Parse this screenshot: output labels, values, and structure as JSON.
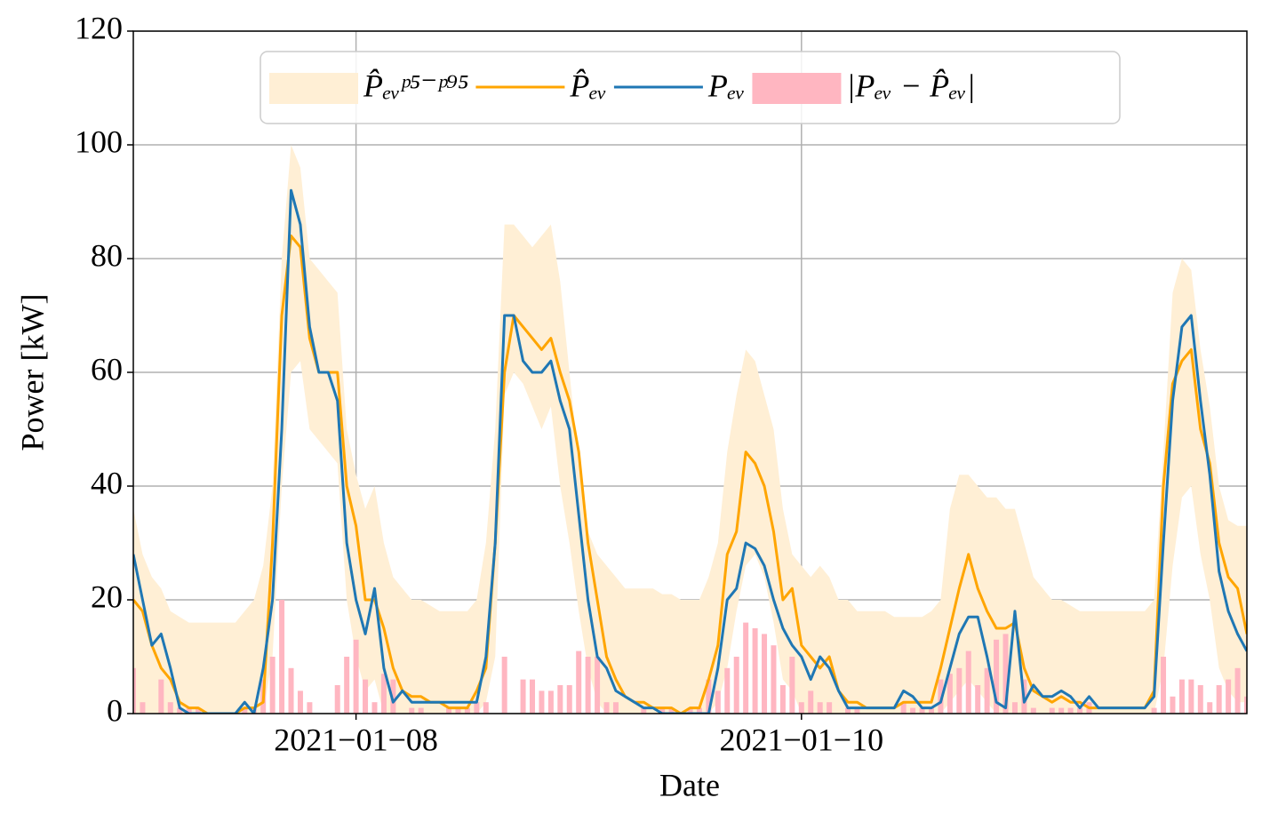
{
  "chart_data": {
    "type": "line",
    "x_label": "Date",
    "y_label": "Power [kW]",
    "xlim": [
      "2021-01-07",
      "2021-01-12"
    ],
    "xticks": [
      {
        "value": "2021-01-08",
        "label": "2021−01−08"
      },
      {
        "value": "2021-01-10",
        "label": "2021−01−10"
      }
    ],
    "ylim": [
      0,
      120
    ],
    "yticks": [
      0,
      20,
      40,
      60,
      80,
      100,
      120
    ],
    "grid": true,
    "legend": "upper center",
    "x": [
      "2021-01-07T00:00",
      "2021-01-07T01:00",
      "2021-01-07T02:00",
      "2021-01-07T03:00",
      "2021-01-07T04:00",
      "2021-01-07T05:00",
      "2021-01-07T06:00",
      "2021-01-07T07:00",
      "2021-01-07T08:00",
      "2021-01-07T09:00",
      "2021-01-07T10:00",
      "2021-01-07T11:00",
      "2021-01-07T12:00",
      "2021-01-07T13:00",
      "2021-01-07T14:00",
      "2021-01-07T15:00",
      "2021-01-07T16:00",
      "2021-01-07T17:00",
      "2021-01-07T18:00",
      "2021-01-07T19:00",
      "2021-01-07T20:00",
      "2021-01-07T21:00",
      "2021-01-07T22:00",
      "2021-01-07T23:00",
      "2021-01-08T00:00",
      "2021-01-08T01:00",
      "2021-01-08T02:00",
      "2021-01-08T03:00",
      "2021-01-08T04:00",
      "2021-01-08T05:00",
      "2021-01-08T06:00",
      "2021-01-08T07:00",
      "2021-01-08T08:00",
      "2021-01-08T09:00",
      "2021-01-08T10:00",
      "2021-01-08T11:00",
      "2021-01-08T12:00",
      "2021-01-08T13:00",
      "2021-01-08T14:00",
      "2021-01-08T15:00",
      "2021-01-08T16:00",
      "2021-01-08T17:00",
      "2021-01-08T18:00",
      "2021-01-08T19:00",
      "2021-01-08T20:00",
      "2021-01-08T21:00",
      "2021-01-08T22:00",
      "2021-01-08T23:00",
      "2021-01-09T00:00",
      "2021-01-09T01:00",
      "2021-01-09T02:00",
      "2021-01-09T03:00",
      "2021-01-09T04:00",
      "2021-01-09T05:00",
      "2021-01-09T06:00",
      "2021-01-09T07:00",
      "2021-01-09T08:00",
      "2021-01-09T09:00",
      "2021-01-09T10:00",
      "2021-01-09T11:00",
      "2021-01-09T12:00",
      "2021-01-09T13:00",
      "2021-01-09T14:00",
      "2021-01-09T15:00",
      "2021-01-09T16:00",
      "2021-01-09T17:00",
      "2021-01-09T18:00",
      "2021-01-09T19:00",
      "2021-01-09T20:00",
      "2021-01-09T21:00",
      "2021-01-09T22:00",
      "2021-01-09T23:00",
      "2021-01-10T00:00",
      "2021-01-10T01:00",
      "2021-01-10T02:00",
      "2021-01-10T03:00",
      "2021-01-10T04:00",
      "2021-01-10T05:00",
      "2021-01-10T06:00",
      "2021-01-10T07:00",
      "2021-01-10T08:00",
      "2021-01-10T09:00",
      "2021-01-10T10:00",
      "2021-01-10T11:00",
      "2021-01-10T12:00",
      "2021-01-10T13:00",
      "2021-01-10T14:00",
      "2021-01-10T15:00",
      "2021-01-10T16:00",
      "2021-01-10T17:00",
      "2021-01-10T18:00",
      "2021-01-10T19:00",
      "2021-01-10T20:00",
      "2021-01-10T21:00",
      "2021-01-10T22:00",
      "2021-01-10T23:00",
      "2021-01-11T00:00",
      "2021-01-11T01:00",
      "2021-01-11T02:00",
      "2021-01-11T03:00",
      "2021-01-11T04:00",
      "2021-01-11T05:00",
      "2021-01-11T06:00",
      "2021-01-11T07:00",
      "2021-01-11T08:00",
      "2021-01-11T09:00",
      "2021-01-11T10:00",
      "2021-01-11T11:00",
      "2021-01-11T12:00",
      "2021-01-11T13:00",
      "2021-01-11T14:00",
      "2021-01-11T15:00",
      "2021-01-11T16:00",
      "2021-01-11T17:00",
      "2021-01-11T18:00",
      "2021-01-11T19:00",
      "2021-01-11T20:00",
      "2021-01-11T21:00",
      "2021-01-11T22:00",
      "2021-01-11T23:00",
      "2021-01-12T00:00"
    ],
    "series": [
      {
        "name": "P̂ₑᵥᵖ⁵⁻ᵖ⁹⁵",
        "type": "band",
        "color": "#ffefd5",
        "lower": [
          0,
          0,
          0,
          0,
          0,
          0,
          0,
          0,
          0,
          0,
          0,
          0,
          0,
          0,
          0,
          10,
          40,
          60,
          62,
          50,
          48,
          46,
          44,
          20,
          10,
          4,
          6,
          0,
          0,
          0,
          0,
          0,
          0,
          0,
          0,
          0,
          0,
          0,
          2,
          10,
          56,
          60,
          58,
          54,
          50,
          54,
          40,
          30,
          18,
          8,
          2,
          0,
          0,
          0,
          0,
          0,
          0,
          0,
          0,
          0,
          0,
          0,
          0,
          2,
          8,
          18,
          26,
          28,
          24,
          16,
          6,
          4,
          0,
          0,
          0,
          0,
          0,
          0,
          0,
          0,
          0,
          0,
          0,
          0,
          0,
          0,
          0,
          0,
          2,
          4,
          6,
          4,
          2,
          0,
          0,
          0,
          0,
          0,
          0,
          0,
          0,
          0,
          0,
          0,
          0,
          0,
          0,
          0,
          0,
          0,
          0,
          8,
          26,
          38,
          40,
          28,
          20,
          8,
          4,
          2,
          2
        ],
        "upper": [
          36,
          28,
          24,
          22,
          18,
          17,
          16,
          16,
          16,
          16,
          16,
          16,
          18,
          20,
          26,
          40,
          80,
          100,
          96,
          80,
          78,
          76,
          74,
          50,
          42,
          36,
          40,
          30,
          24,
          22,
          20,
          20,
          19,
          18,
          18,
          18,
          18,
          20,
          30,
          50,
          86,
          86,
          84,
          82,
          84,
          86,
          76,
          60,
          44,
          32,
          28,
          26,
          24,
          22,
          22,
          22,
          22,
          21,
          21,
          20,
          20,
          20,
          24,
          30,
          46,
          56,
          64,
          62,
          56,
          50,
          36,
          28,
          26,
          24,
          26,
          24,
          20,
          20,
          18,
          18,
          18,
          18,
          17,
          17,
          17,
          17,
          18,
          20,
          36,
          42,
          42,
          40,
          38,
          38,
          36,
          36,
          30,
          24,
          22,
          20,
          20,
          19,
          18,
          18,
          18,
          18,
          18,
          18,
          18,
          18,
          20,
          46,
          74,
          80,
          78,
          64,
          54,
          40,
          34,
          33,
          33
        ]
      },
      {
        "name": "P̂ₑᵥ",
        "type": "line",
        "color": "#ffa500",
        "values": [
          20,
          18,
          12,
          8,
          6,
          2,
          1,
          1,
          0,
          0,
          0,
          0,
          1,
          1,
          2,
          30,
          70,
          84,
          82,
          66,
          60,
          60,
          60,
          40,
          33,
          20,
          20,
          15,
          8,
          4,
          3,
          3,
          2,
          2,
          1,
          1,
          1,
          4,
          8,
          30,
          60,
          70,
          68,
          66,
          64,
          66,
          60,
          55,
          46,
          30,
          20,
          10,
          6,
          3,
          2,
          2,
          1,
          1,
          1,
          0,
          1,
          1,
          6,
          12,
          28,
          32,
          46,
          44,
          40,
          32,
          20,
          22,
          12,
          10,
          8,
          10,
          4,
          2,
          2,
          1,
          1,
          1,
          1,
          2,
          2,
          2,
          2,
          8,
          15,
          22,
          28,
          22,
          18,
          15,
          15,
          16,
          8,
          4,
          3,
          2,
          3,
          2,
          2,
          1,
          1,
          1,
          1,
          1,
          1,
          1,
          4,
          40,
          58,
          62,
          64,
          50,
          44,
          30,
          24,
          22,
          14
        ]
      },
      {
        "name": "Pₑᵥ",
        "type": "line",
        "color": "#1f77b4",
        "values": [
          28,
          20,
          12,
          14,
          8,
          1,
          0,
          0,
          0,
          0,
          0,
          0,
          2,
          0,
          8,
          20,
          50,
          92,
          86,
          68,
          60,
          60,
          55,
          30,
          20,
          14,
          22,
          8,
          2,
          4,
          2,
          2,
          2,
          2,
          2,
          2,
          2,
          2,
          10,
          30,
          70,
          70,
          62,
          60,
          60,
          62,
          55,
          50,
          35,
          20,
          10,
          8,
          4,
          3,
          2,
          1,
          1,
          0,
          0,
          0,
          0,
          0,
          0,
          8,
          20,
          22,
          30,
          29,
          26,
          20,
          15,
          12,
          10,
          6,
          10,
          8,
          4,
          1,
          1,
          1,
          1,
          1,
          1,
          4,
          3,
          1,
          1,
          2,
          8,
          14,
          17,
          17,
          10,
          2,
          1,
          18,
          2,
          5,
          3,
          3,
          4,
          3,
          1,
          3,
          1,
          1,
          1,
          1,
          1,
          1,
          3,
          30,
          55,
          68,
          70,
          55,
          42,
          25,
          18,
          14,
          11
        ]
      },
      {
        "name": "|Pₑᵥ − P̂ₑᵥ|",
        "type": "bar",
        "color": "#ffb6c1",
        "values": [
          8,
          2,
          0,
          6,
          2,
          1,
          1,
          1,
          0,
          0,
          0,
          0,
          1,
          1,
          6,
          10,
          20,
          8,
          4,
          2,
          0,
          0,
          5,
          10,
          13,
          6,
          2,
          7,
          6,
          0,
          1,
          1,
          0,
          0,
          1,
          1,
          1,
          2,
          2,
          0,
          10,
          0,
          6,
          6,
          4,
          4,
          5,
          5,
          11,
          10,
          10,
          2,
          2,
          0,
          0,
          1,
          0,
          1,
          1,
          0,
          1,
          1,
          6,
          4,
          8,
          10,
          16,
          15,
          14,
          12,
          5,
          10,
          2,
          4,
          2,
          2,
          0,
          1,
          1,
          0,
          0,
          0,
          0,
          2,
          1,
          1,
          1,
          6,
          7,
          8,
          11,
          5,
          8,
          13,
          14,
          2,
          6,
          1,
          0,
          1,
          1,
          1,
          1,
          2,
          0,
          0,
          0,
          0,
          0,
          0,
          1,
          10,
          3,
          6,
          6,
          5,
          2,
          5,
          6,
          8,
          3
        ]
      }
    ]
  }
}
